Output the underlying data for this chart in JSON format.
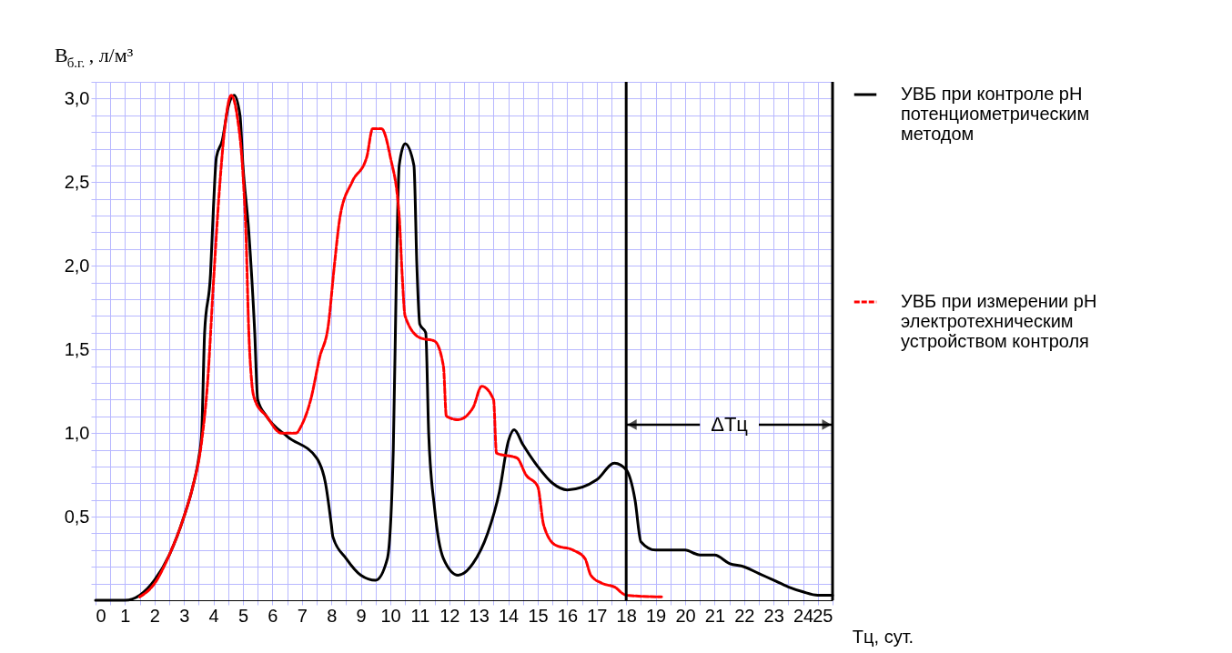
{
  "chart_data": {
    "type": "line",
    "ylabel": "В$_{б.г.}$, л/м³",
    "xlabel": "Tц, сут.",
    "xlim": [
      0,
      25
    ],
    "ylim": [
      0,
      3.1
    ],
    "xticks": [
      0,
      {
        "value": 0.5,
        "label": null
      },
      1,
      {
        "value": 1.5,
        "label": null
      },
      2,
      {
        "value": 2.5,
        "label": null
      },
      3,
      {
        "value": 3.5,
        "label": null
      },
      4,
      {
        "value": 4.5,
        "label": null
      },
      5,
      {
        "value": 5.5,
        "label": null
      },
      6,
      {
        "value": 6.5,
        "label": null
      },
      7,
      {
        "value": 7.5,
        "label": null
      },
      8,
      {
        "value": 8.5,
        "label": null
      },
      9,
      {
        "value": 9.5,
        "label": null
      },
      10,
      {
        "value": 10.5,
        "label": null
      },
      11,
      {
        "value": 11.5,
        "label": null
      },
      12,
      {
        "value": 12.5,
        "label": null
      },
      13,
      {
        "value": 13.5,
        "label": null
      },
      14,
      {
        "value": 14.5,
        "label": null
      },
      15,
      {
        "value": 15.5,
        "label": null
      },
      16,
      {
        "value": 16.5,
        "label": null
      },
      17,
      {
        "value": 17.5,
        "label": null
      },
      18,
      {
        "value": 18.5,
        "label": null
      },
      19,
      {
        "value": 19.5,
        "label": null
      },
      20,
      {
        "value": 20.5,
        "label": null
      },
      21,
      {
        "value": 21.5,
        "label": null
      },
      22,
      {
        "value": 22.5,
        "label": null
      },
      23,
      {
        "value": 23.5,
        "label": null
      },
      24,
      {
        "value": 24.5,
        "label": null
      },
      25
    ],
    "yticks": [
      {
        "value": 0.1,
        "label": null
      },
      {
        "value": 0.2,
        "label": null
      },
      {
        "value": 0.3,
        "label": null
      },
      {
        "value": 0.4,
        "label": null
      },
      {
        "value": 0.5,
        "label": "0,5"
      },
      {
        "value": 0.6,
        "label": null
      },
      {
        "value": 0.7,
        "label": null
      },
      {
        "value": 0.8,
        "label": null
      },
      {
        "value": 0.9,
        "label": null
      },
      {
        "value": 1.0,
        "label": "1,0"
      },
      {
        "value": 1.1,
        "label": null
      },
      {
        "value": 1.2,
        "label": null
      },
      {
        "value": 1.3,
        "label": null
      },
      {
        "value": 1.4,
        "label": null
      },
      {
        "value": 1.5,
        "label": "1,5"
      },
      {
        "value": 1.6,
        "label": null
      },
      {
        "value": 1.7,
        "label": null
      },
      {
        "value": 1.8,
        "label": null
      },
      {
        "value": 1.9,
        "label": null
      },
      {
        "value": 2.0,
        "label": "2,0"
      },
      {
        "value": 2.1,
        "label": null
      },
      {
        "value": 2.2,
        "label": null
      },
      {
        "value": 2.3,
        "label": null
      },
      {
        "value": 2.4,
        "label": null
      },
      {
        "value": 2.5,
        "label": "2,5"
      },
      {
        "value": 2.6,
        "label": null
      },
      {
        "value": 2.7,
        "label": null
      },
      {
        "value": 2.8,
        "label": null
      },
      {
        "value": 2.9,
        "label": null
      },
      {
        "value": 3.0,
        "label": "3,0"
      },
      {
        "value": 3.1,
        "label": null
      }
    ],
    "grid": true,
    "legend": "right",
    "marker": "none",
    "series": [
      {
        "name": "УВБ при контроле pH\nпотенциометрическим\nметодом",
        "color": "#000000",
        "line_style": "solid",
        "x": [
          0,
          1,
          1.5,
          2,
          2.5,
          3,
          3.3,
          3.5,
          3.6,
          3.7,
          3.9,
          4.0,
          4.1,
          4.3,
          4.5,
          4.7,
          4.9,
          5.0,
          5.2,
          5.4,
          5.5,
          5.8,
          6.5,
          7.5,
          7.8,
          8.0,
          8.05,
          8.5,
          9.0,
          9.5,
          9.9,
          10.1,
          10.2,
          10.3,
          10.5,
          10.8,
          10.9,
          11.0,
          11.2,
          11.3,
          11.5,
          11.8,
          12.3,
          12.8,
          13.3,
          13.7,
          14.0,
          14.2,
          14.5,
          15.0,
          15.5,
          16.0,
          17.0,
          17.6,
          18.0,
          18.3,
          18.5,
          19.0,
          20.0,
          20.5,
          21.0,
          21.5,
          22.0,
          22.5,
          23.0,
          23.5,
          24.0,
          24.5,
          25
        ],
        "values": [
          0,
          0,
          0.03,
          0.12,
          0.27,
          0.5,
          0.68,
          0.85,
          1.0,
          1.6,
          1.95,
          2.35,
          2.65,
          2.75,
          2.95,
          3.02,
          2.9,
          2.6,
          2.2,
          1.6,
          1.2,
          1.1,
          0.98,
          0.85,
          0.7,
          0.45,
          0.38,
          0.25,
          0.15,
          0.12,
          0.25,
          0.9,
          1.9,
          2.6,
          2.73,
          2.6,
          2.0,
          1.65,
          1.6,
          1.0,
          0.55,
          0.25,
          0.15,
          0.22,
          0.4,
          0.65,
          0.95,
          1.02,
          0.93,
          0.8,
          0.7,
          0.66,
          0.72,
          0.82,
          0.78,
          0.6,
          0.35,
          0.3,
          0.3,
          0.27,
          0.27,
          0.22,
          0.2,
          0.16,
          0.12,
          0.08,
          0.05,
          0.03,
          0.03
        ]
      },
      {
        "name": "УВБ при измерении pH\nэлектротехническим\nустройством контроля",
        "color": "#ff0000",
        "line_style": "dashed",
        "x": [
          1.5,
          2,
          2.5,
          3,
          3.3,
          3.6,
          3.8,
          4.0,
          4.2,
          4.4,
          4.6,
          4.8,
          5.0,
          5.1,
          5.2,
          5.3,
          5.4,
          5.8,
          6.3,
          6.8,
          7.0,
          7.3,
          7.6,
          7.9,
          8.1,
          8.3,
          8.7,
          9.2,
          9.4,
          9.7,
          10.0,
          10.3,
          10.4,
          10.5,
          11.0,
          11.5,
          11.8,
          11.9,
          12.3,
          12.8,
          13.1,
          13.5,
          13.6,
          14.3,
          14.6,
          15.0,
          15.2,
          15.6,
          16.2,
          16.6,
          16.8,
          17.2,
          17.6,
          18.0,
          19.2
        ],
        "values": [
          0.02,
          0.1,
          0.27,
          0.5,
          0.68,
          0.95,
          1.3,
          1.9,
          2.45,
          2.85,
          3.02,
          2.9,
          2.55,
          2.2,
          1.6,
          1.3,
          1.2,
          1.1,
          1.0,
          1.0,
          1.05,
          1.2,
          1.45,
          1.65,
          2.0,
          2.3,
          2.5,
          2.65,
          2.82,
          2.82,
          2.65,
          2.3,
          1.95,
          1.7,
          1.57,
          1.55,
          1.4,
          1.1,
          1.08,
          1.15,
          1.28,
          1.2,
          0.88,
          0.85,
          0.75,
          0.68,
          0.45,
          0.33,
          0.3,
          0.25,
          0.15,
          0.1,
          0.08,
          0.03,
          0.02
        ]
      }
    ],
    "ref_lines": [
      {
        "axis": "x",
        "value": 18,
        "color": "#000000"
      },
      {
        "axis": "x",
        "value": 25,
        "color": "#000000"
      }
    ],
    "annotations": [
      {
        "text": "ΔTц",
        "x": 25,
        "y": 1.05
      }
    ]
  }
}
